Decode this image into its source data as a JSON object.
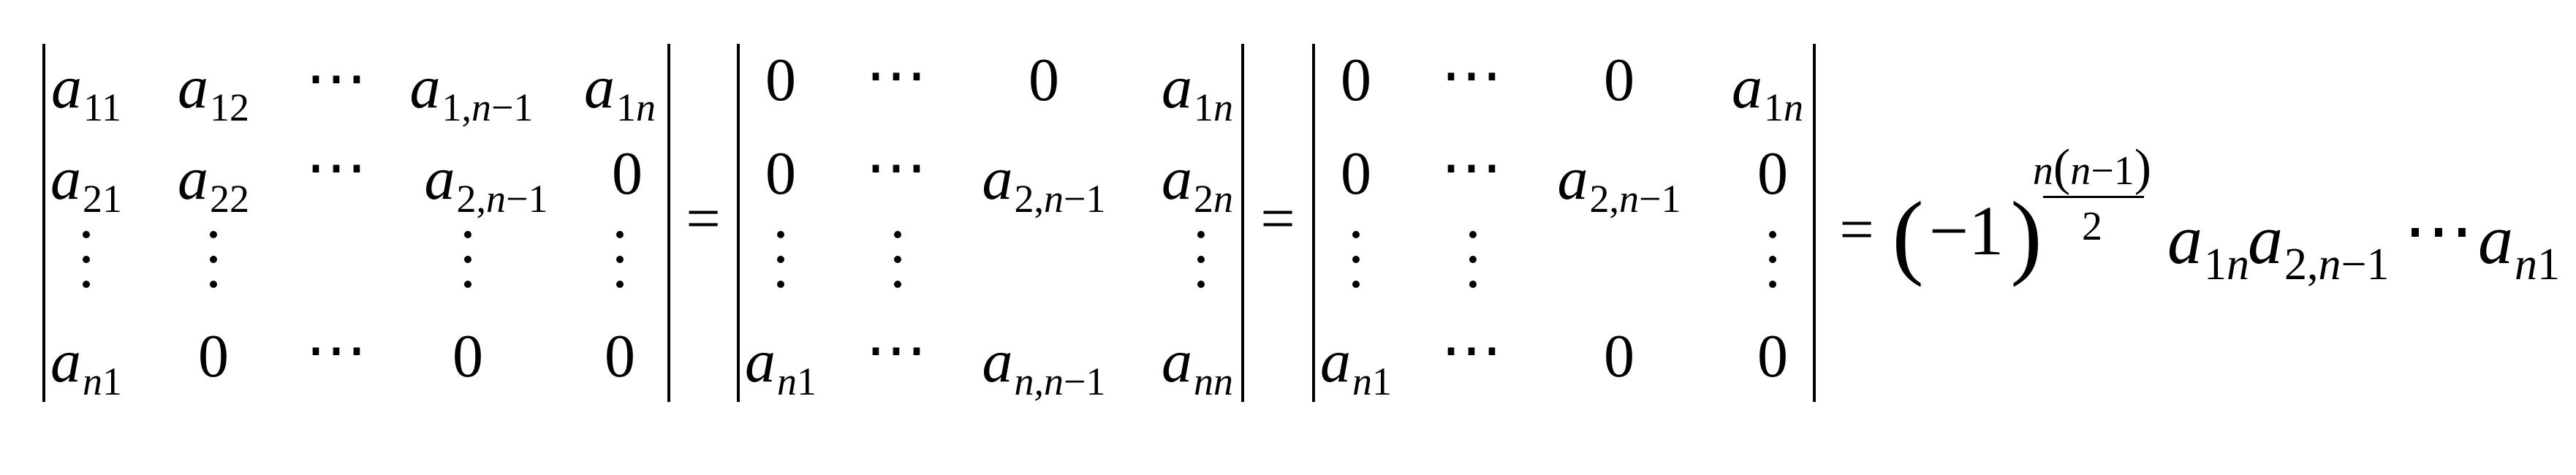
{
  "equals": "=",
  "det1": {
    "row1": [
      {
        "base": "a",
        "sub": "11"
      },
      {
        "base": "a",
        "sub": "12"
      },
      {
        "hdots": "⋯"
      },
      {
        "base": "a",
        "sub_parts": [
          "1,",
          "n",
          "−1"
        ]
      },
      {
        "base": "a",
        "sub_parts": [
          "1",
          "n"
        ]
      }
    ],
    "row2": [
      {
        "base": "a",
        "sub": "21"
      },
      {
        "base": "a",
        "sub": "22"
      },
      {
        "hdots": "⋯"
      },
      {
        "base": "a",
        "sub_parts": [
          "2,",
          "n",
          "−1"
        ]
      },
      {
        "num": "0"
      }
    ],
    "row4": [
      {
        "base": "a",
        "sub_parts": [
          "n",
          "1"
        ]
      },
      {
        "num": "0"
      },
      {
        "hdots": "⋯"
      },
      {
        "num": "0"
      },
      {
        "num": "0"
      }
    ]
  },
  "det2": {
    "row1": [
      {
        "num": "0"
      },
      {
        "hdots": "⋯"
      },
      {
        "num": "0"
      },
      {
        "base": "a",
        "sub_parts": [
          "1",
          "n"
        ]
      }
    ],
    "row2": [
      {
        "num": "0"
      },
      {
        "hdots": "⋯"
      },
      {
        "base": "a",
        "sub_parts": [
          "2,",
          "n",
          "−1"
        ]
      },
      {
        "base": "a",
        "sub_parts": [
          "2",
          "n"
        ]
      }
    ],
    "row4": [
      {
        "base": "a",
        "sub_parts": [
          "n",
          "1"
        ]
      },
      {
        "hdots": "⋯"
      },
      {
        "base": "a",
        "sub_parts": [
          "n,",
          "n",
          "−1"
        ]
      },
      {
        "base": "a",
        "sub_parts": [
          "nn"
        ]
      }
    ]
  },
  "det3": {
    "row1": [
      {
        "num": "0"
      },
      {
        "hdots": "⋯"
      },
      {
        "num": "0"
      },
      {
        "base": "a",
        "sub_parts": [
          "1",
          "n"
        ]
      }
    ],
    "row2": [
      {
        "num": "0"
      },
      {
        "hdots": "⋯"
      },
      {
        "base": "a",
        "sub_parts": [
          "2,",
          "n",
          "−1"
        ]
      },
      {
        "num": "0"
      }
    ],
    "row4": [
      {
        "base": "a",
        "sub_parts": [
          "n",
          "1"
        ]
      },
      {
        "hdots": "⋯"
      },
      {
        "num": "0"
      },
      {
        "num": "0"
      }
    ]
  },
  "result": {
    "lparen": "(",
    "sign": "−1",
    "rparen": ")",
    "exp_num_n": "n",
    "exp_num_paren_open": "(",
    "exp_num_inner": "n−1",
    "exp_num_paren_close": ")",
    "exp_den": "2",
    "product": [
      {
        "base": "a",
        "sub_parts": [
          "1",
          "n"
        ]
      },
      {
        "base": "a",
        "sub_parts": [
          "2,",
          "n",
          "−1"
        ]
      },
      {
        "hdots": "⋯"
      },
      {
        "base": "a",
        "sub_parts": [
          "n",
          "1"
        ]
      }
    ]
  }
}
